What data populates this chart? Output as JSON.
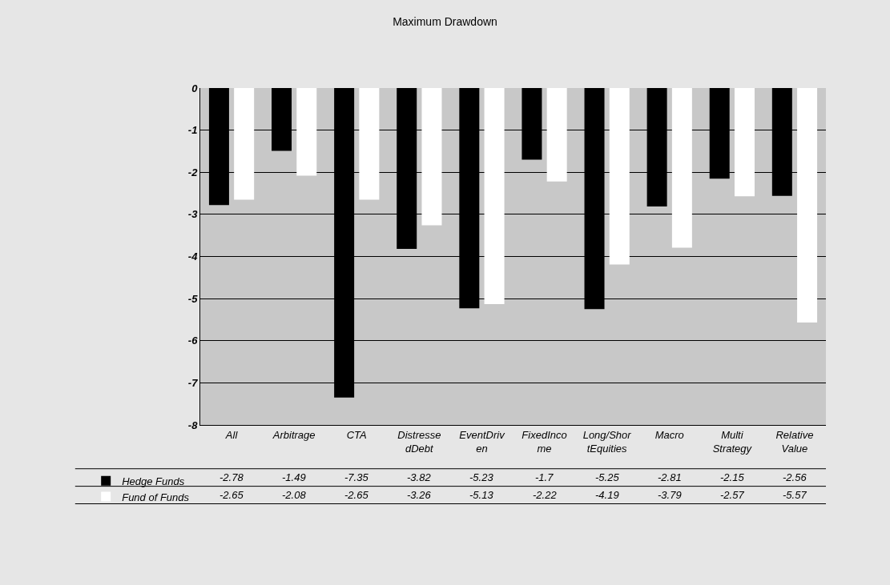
{
  "chart_data": {
    "type": "bar",
    "title": "Maximum Drawdown",
    "categories": [
      "All",
      "Arbitrage",
      "CTA",
      "DistressedDebt",
      "EventDriven",
      "FixedIncome",
      "Long/ShortEquities",
      "Macro",
      "Multi Strategy",
      "Relative Value"
    ],
    "series": [
      {
        "name": "Hedge Funds",
        "color": "#000000",
        "values": [
          -2.78,
          -1.49,
          -7.35,
          -3.82,
          -5.23,
          -1.7,
          -5.25,
          -2.81,
          -2.15,
          -2.56
        ]
      },
      {
        "name": "Fund of Funds",
        "color": "#ffffff",
        "values": [
          -2.65,
          -2.08,
          -2.65,
          -3.26,
          -5.13,
          -2.22,
          -4.19,
          -3.79,
          -2.57,
          -5.57
        ]
      }
    ],
    "ylim": [
      -8,
      0
    ],
    "yticks": [
      -8,
      -7,
      -6,
      -5,
      -4,
      -3,
      -2,
      -1,
      0
    ],
    "grid": "y",
    "legend": "bottom left",
    "data_labels": true
  }
}
